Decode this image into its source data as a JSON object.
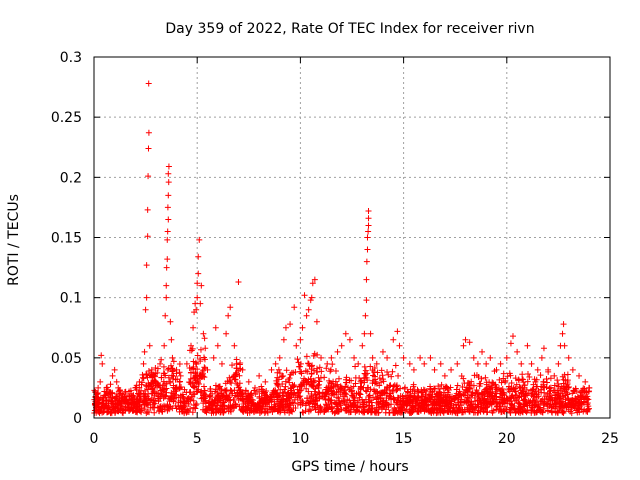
{
  "chart_data": {
    "type": "scatter",
    "title": "Day 359 of 2022, Rate Of TEC Index for receiver rivn",
    "xlabel": "GPS time / hours",
    "ylabel": "ROTI / TECUs",
    "xlim": [
      0,
      25
    ],
    "ylim": [
      0,
      0.3
    ],
    "xticks": [
      0,
      5,
      10,
      15,
      20,
      25
    ],
    "yticks": [
      0,
      0.05,
      0.1,
      0.15,
      0.2,
      0.25,
      0.3
    ],
    "xtick_labels": [
      "0",
      "5",
      "10",
      "15",
      "20",
      "25"
    ],
    "ytick_labels": [
      "0",
      "0.05",
      "0.1",
      "0.15",
      "0.2",
      "0.25",
      "0.3"
    ],
    "grid": true,
    "marker": "+",
    "color": "#ff0000",
    "series": [
      {
        "name": "ROTI",
        "points": [
          [
            0.05,
            0.012
          ],
          [
            0.1,
            0.018
          ],
          [
            0.15,
            0.02
          ],
          [
            0.2,
            0.025
          ],
          [
            0.3,
            0.03
          ],
          [
            0.35,
            0.052
          ],
          [
            0.4,
            0.045
          ],
          [
            0.5,
            0.022
          ],
          [
            0.6,
            0.015
          ],
          [
            0.8,
            0.028
          ],
          [
            0.9,
            0.035
          ],
          [
            1.0,
            0.04
          ],
          [
            1.1,
            0.03
          ],
          [
            1.3,
            0.02
          ],
          [
            1.5,
            0.018
          ],
          [
            1.7,
            0.022
          ],
          [
            2.0,
            0.025
          ],
          [
            2.2,
            0.03
          ],
          [
            2.4,
            0.045
          ],
          [
            2.45,
            0.055
          ],
          [
            2.5,
            0.09
          ],
          [
            2.55,
            0.1
          ],
          [
            2.55,
            0.127
          ],
          [
            2.6,
            0.151
          ],
          [
            2.6,
            0.173
          ],
          [
            2.62,
            0.201
          ],
          [
            2.64,
            0.224
          ],
          [
            2.66,
            0.237
          ],
          [
            2.65,
            0.278
          ],
          [
            2.7,
            0.06
          ],
          [
            2.8,
            0.04
          ],
          [
            3.0,
            0.03
          ],
          [
            3.2,
            0.045
          ],
          [
            3.4,
            0.06
          ],
          [
            3.45,
            0.085
          ],
          [
            3.5,
            0.1
          ],
          [
            3.5,
            0.11
          ],
          [
            3.52,
            0.125
          ],
          [
            3.55,
            0.132
          ],
          [
            3.55,
            0.148
          ],
          [
            3.57,
            0.155
          ],
          [
            3.6,
            0.165
          ],
          [
            3.58,
            0.175
          ],
          [
            3.6,
            0.185
          ],
          [
            3.62,
            0.196
          ],
          [
            3.6,
            0.203
          ],
          [
            3.63,
            0.209
          ],
          [
            3.7,
            0.08
          ],
          [
            3.75,
            0.065
          ],
          [
            3.8,
            0.05
          ],
          [
            4.0,
            0.04
          ],
          [
            4.2,
            0.035
          ],
          [
            4.5,
            0.045
          ],
          [
            4.7,
            0.06
          ],
          [
            4.8,
            0.075
          ],
          [
            4.85,
            0.088
          ],
          [
            4.9,
            0.095
          ],
          [
            4.95,
            0.09
          ],
          [
            5.0,
            0.1
          ],
          [
            5.0,
            0.112
          ],
          [
            5.05,
            0.12
          ],
          [
            5.05,
            0.134
          ],
          [
            5.1,
            0.148
          ],
          [
            5.15,
            0.095
          ],
          [
            5.2,
            0.11
          ],
          [
            5.3,
            0.07
          ],
          [
            5.5,
            0.04
          ],
          [
            5.8,
            0.05
          ],
          [
            5.9,
            0.075
          ],
          [
            6.0,
            0.06
          ],
          [
            6.2,
            0.045
          ],
          [
            6.4,
            0.07
          ],
          [
            6.5,
            0.085
          ],
          [
            6.6,
            0.092
          ],
          [
            6.8,
            0.06
          ],
          [
            6.9,
            0.045
          ],
          [
            7.0,
            0.113
          ],
          [
            7.2,
            0.04
          ],
          [
            7.5,
            0.03
          ],
          [
            7.8,
            0.025
          ],
          [
            8.0,
            0.035
          ],
          [
            8.3,
            0.03
          ],
          [
            8.6,
            0.04
          ],
          [
            8.8,
            0.045
          ],
          [
            9.0,
            0.05
          ],
          [
            9.2,
            0.065
          ],
          [
            9.3,
            0.075
          ],
          [
            9.5,
            0.078
          ],
          [
            9.7,
            0.092
          ],
          [
            9.8,
            0.06
          ],
          [
            10.0,
            0.065
          ],
          [
            10.1,
            0.075
          ],
          [
            10.2,
            0.102
          ],
          [
            10.3,
            0.085
          ],
          [
            10.4,
            0.09
          ],
          [
            10.5,
            0.098
          ],
          [
            10.55,
            0.1
          ],
          [
            10.6,
            0.112
          ],
          [
            10.7,
            0.115
          ],
          [
            10.8,
            0.08
          ],
          [
            11.0,
            0.05
          ],
          [
            11.3,
            0.045
          ],
          [
            11.5,
            0.05
          ],
          [
            11.8,
            0.055
          ],
          [
            12.0,
            0.06
          ],
          [
            12.2,
            0.07
          ],
          [
            12.4,
            0.065
          ],
          [
            12.6,
            0.05
          ],
          [
            12.8,
            0.045
          ],
          [
            13.0,
            0.06
          ],
          [
            13.1,
            0.07
          ],
          [
            13.15,
            0.085
          ],
          [
            13.2,
            0.098
          ],
          [
            13.2,
            0.115
          ],
          [
            13.22,
            0.13
          ],
          [
            13.25,
            0.14
          ],
          [
            13.25,
            0.15
          ],
          [
            13.28,
            0.155
          ],
          [
            13.3,
            0.16
          ],
          [
            13.3,
            0.166
          ],
          [
            13.3,
            0.172
          ],
          [
            13.4,
            0.07
          ],
          [
            13.5,
            0.05
          ],
          [
            13.7,
            0.045
          ],
          [
            14.0,
            0.055
          ],
          [
            14.2,
            0.05
          ],
          [
            14.5,
            0.065
          ],
          [
            14.7,
            0.072
          ],
          [
            14.8,
            0.06
          ],
          [
            15.0,
            0.05
          ],
          [
            15.3,
            0.045
          ],
          [
            15.5,
            0.04
          ],
          [
            15.8,
            0.05
          ],
          [
            16.0,
            0.045
          ],
          [
            16.3,
            0.05
          ],
          [
            16.5,
            0.04
          ],
          [
            16.8,
            0.045
          ],
          [
            17.0,
            0.035
          ],
          [
            17.3,
            0.04
          ],
          [
            17.6,
            0.045
          ],
          [
            17.9,
            0.06
          ],
          [
            18.0,
            0.065
          ],
          [
            18.2,
            0.063
          ],
          [
            18.4,
            0.05
          ],
          [
            18.6,
            0.045
          ],
          [
            18.8,
            0.055
          ],
          [
            19.0,
            0.045
          ],
          [
            19.2,
            0.05
          ],
          [
            19.5,
            0.04
          ],
          [
            19.7,
            0.045
          ],
          [
            20.0,
            0.05
          ],
          [
            20.2,
            0.062
          ],
          [
            20.3,
            0.068
          ],
          [
            20.5,
            0.055
          ],
          [
            20.7,
            0.045
          ],
          [
            21.0,
            0.06
          ],
          [
            21.2,
            0.045
          ],
          [
            21.5,
            0.04
          ],
          [
            21.7,
            0.05
          ],
          [
            21.8,
            0.058
          ],
          [
            22.0,
            0.04
          ],
          [
            22.3,
            0.035
          ],
          [
            22.5,
            0.045
          ],
          [
            22.6,
            0.06
          ],
          [
            22.7,
            0.07
          ],
          [
            22.75,
            0.078
          ],
          [
            22.8,
            0.06
          ],
          [
            23.0,
            0.05
          ],
          [
            23.2,
            0.04
          ],
          [
            23.5,
            0.035
          ],
          [
            23.8,
            0.03
          ],
          [
            24.0,
            0.025
          ]
        ]
      }
    ]
  }
}
